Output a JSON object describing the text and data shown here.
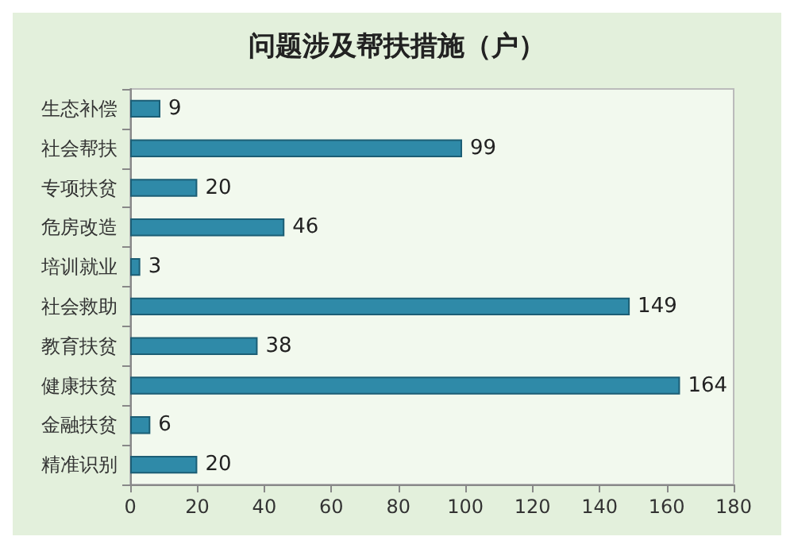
{
  "chart_data": {
    "type": "bar",
    "orientation": "horizontal",
    "title": "问题涉及帮扶措施（户）",
    "categories": [
      "生态补偿",
      "社会帮扶",
      "专项扶贫",
      "危房改造",
      "培训就业",
      "社会救助",
      "教育扶贫",
      "健康扶贫",
      "金融扶贫",
      "精准识别"
    ],
    "values": [
      9,
      99,
      20,
      46,
      3,
      149,
      38,
      164,
      6,
      20
    ],
    "color": "#2f8aa8",
    "xlim": [
      0,
      180
    ],
    "xticks": [
      0,
      20,
      40,
      60,
      80,
      100,
      120,
      140,
      160,
      180
    ],
    "data_labels": true,
    "grid": false
  }
}
